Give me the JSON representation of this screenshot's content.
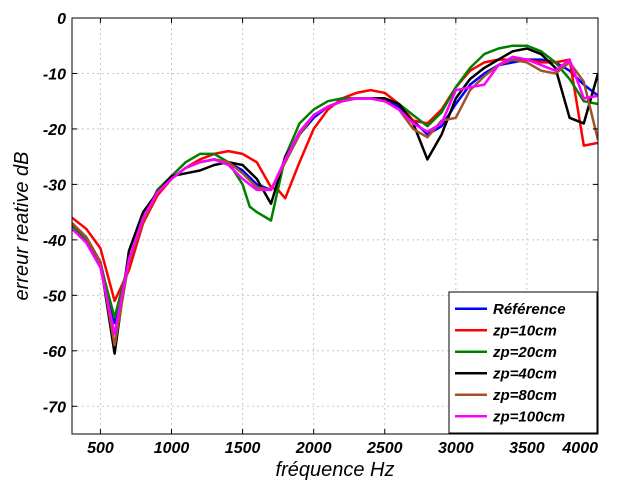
{
  "chart_data": {
    "type": "line",
    "title": "",
    "xlabel": "fréquence Hz",
    "ylabel": "erreur reative dB",
    "xlim": [
      300,
      4000
    ],
    "ylim": [
      -75,
      0
    ],
    "grid": true,
    "legend_position": "bottom-right",
    "x_ticks": [
      500,
      1000,
      1500,
      2000,
      2500,
      3000,
      3500,
      4000
    ],
    "x_tick_labels": [
      "500",
      "1000",
      "1500",
      "2000",
      "2500",
      "3000",
      "3500",
      "4000"
    ],
    "y_ticks": [
      0,
      -10,
      -20,
      -30,
      -40,
      -50,
      -60,
      -70
    ],
    "y_tick_labels": [
      "0",
      "-10",
      "-20",
      "-30",
      "-40",
      "-50",
      "-60",
      "-70"
    ],
    "series": [
      {
        "name": "Référence",
        "color": "#0000ff",
        "x": [
          300,
          400,
          500,
          600,
          700,
          800,
          900,
          1000,
          1100,
          1200,
          1300,
          1400,
          1500,
          1600,
          1700,
          1800,
          1900,
          2000,
          2100,
          2200,
          2300,
          2400,
          2500,
          2600,
          2700,
          2800,
          2900,
          3000,
          3100,
          3200,
          3300,
          3400,
          3500,
          3600,
          3700,
          3800,
          3900,
          4000
        ],
        "y": [
          -37,
          -39.5,
          -44,
          -55,
          -44,
          -36,
          -31.5,
          -29,
          -27,
          -26,
          -25.5,
          -26,
          -27.5,
          -30,
          -31,
          -26,
          -21,
          -18,
          -16,
          -15,
          -14.5,
          -14.5,
          -15,
          -16,
          -18.5,
          -21,
          -19.5,
          -15.5,
          -12,
          -10,
          -8.5,
          -8,
          -7.5,
          -7.5,
          -8,
          -9.5,
          -12,
          -14
        ]
      },
      {
        "name": "zp=10cm",
        "color": "#ff0000",
        "x": [
          300,
          400,
          500,
          600,
          700,
          800,
          900,
          1000,
          1100,
          1200,
          1300,
          1400,
          1500,
          1600,
          1700,
          1750,
          1800,
          1900,
          2000,
          2100,
          2200,
          2300,
          2400,
          2500,
          2600,
          2700,
          2800,
          2900,
          3000,
          3100,
          3200,
          3300,
          3400,
          3500,
          3600,
          3700,
          3800,
          3900,
          4000
        ],
        "y": [
          -36,
          -38,
          -41.5,
          -51,
          -45.5,
          -37,
          -32,
          -29,
          -27,
          -25.5,
          -24.5,
          -24,
          -24.5,
          -26,
          -30.5,
          -31,
          -32.5,
          -26,
          -20,
          -16.5,
          -14.5,
          -13.5,
          -13,
          -13.5,
          -15.5,
          -18.5,
          -19,
          -16.5,
          -12.5,
          -9.5,
          -8,
          -7.5,
          -7.5,
          -7.5,
          -8,
          -8,
          -7.5,
          -23,
          -22.5
        ]
      },
      {
        "name": "zp=20cm",
        "color": "#008000",
        "x": [
          300,
          400,
          500,
          600,
          700,
          800,
          900,
          1000,
          1100,
          1200,
          1300,
          1400,
          1500,
          1550,
          1600,
          1700,
          1800,
          1900,
          2000,
          2100,
          2200,
          2300,
          2400,
          2500,
          2600,
          2700,
          2800,
          2900,
          3000,
          3100,
          3200,
          3300,
          3400,
          3500,
          3600,
          3700,
          3800,
          3900,
          4000
        ],
        "y": [
          -37.5,
          -40,
          -44.5,
          -54,
          -44,
          -36.5,
          -31,
          -28.5,
          -26,
          -24.5,
          -24.5,
          -26,
          -30,
          -34,
          -35,
          -36.5,
          -25,
          -19,
          -16.5,
          -15,
          -14.5,
          -14.5,
          -14.5,
          -14.5,
          -15.5,
          -17.5,
          -19.5,
          -17,
          -12.5,
          -9,
          -6.5,
          -5.5,
          -5,
          -5,
          -6,
          -8,
          -11,
          -15,
          -15.5
        ]
      },
      {
        "name": "zp=40cm",
        "color": "#000000",
        "x": [
          300,
          400,
          500,
          600,
          700,
          800,
          900,
          1000,
          1100,
          1200,
          1300,
          1400,
          1500,
          1600,
          1700,
          1800,
          1900,
          2000,
          2100,
          2200,
          2300,
          2400,
          2500,
          2600,
          2700,
          2800,
          2900,
          3000,
          3100,
          3200,
          3300,
          3400,
          3500,
          3600,
          3700,
          3800,
          3900,
          4000
        ],
        "y": [
          -37,
          -39.5,
          -44,
          -60.5,
          -42,
          -35,
          -31.5,
          -28.5,
          -28,
          -27.5,
          -26.5,
          -26,
          -26.5,
          -29,
          -33.5,
          -25,
          -21,
          -17.5,
          -16,
          -15,
          -14.5,
          -14.5,
          -14.5,
          -15.5,
          -19,
          -25.5,
          -21,
          -14.5,
          -11,
          -9,
          -7.5,
          -6,
          -5.5,
          -6.5,
          -9,
          -18,
          -19,
          -10
        ]
      },
      {
        "name": "zp=80cm",
        "color": "#a0522d",
        "x": [
          300,
          400,
          500,
          600,
          700,
          800,
          900,
          1000,
          1100,
          1200,
          1300,
          1400,
          1500,
          1600,
          1700,
          1800,
          1900,
          2000,
          2100,
          2200,
          2300,
          2400,
          2500,
          2600,
          2700,
          2800,
          2900,
          3000,
          3100,
          3200,
          3300,
          3400,
          3500,
          3600,
          3700,
          3800,
          3900,
          4000
        ],
        "y": [
          -37,
          -39.5,
          -44,
          -59,
          -44,
          -36.5,
          -31.5,
          -29,
          -27,
          -26,
          -25.5,
          -26,
          -28,
          -30.5,
          -31,
          -26,
          -21,
          -17.5,
          -16,
          -15,
          -14.5,
          -14.5,
          -15,
          -16.5,
          -20,
          -21.5,
          -18.5,
          -18,
          -13,
          -10.5,
          -8.5,
          -7.5,
          -8,
          -9.5,
          -10,
          -8,
          -11.5,
          -22
        ]
      },
      {
        "name": "zp=100cm",
        "color": "#ff00ff",
        "x": [
          300,
          400,
          500,
          600,
          700,
          800,
          900,
          1000,
          1100,
          1200,
          1300,
          1400,
          1500,
          1600,
          1700,
          1800,
          1900,
          2000,
          2100,
          2200,
          2300,
          2400,
          2500,
          2600,
          2700,
          2800,
          2900,
          3000,
          3100,
          3200,
          3300,
          3400,
          3500,
          3600,
          3700,
          3800,
          3900,
          4000
        ],
        "y": [
          -38,
          -40.5,
          -45,
          -57,
          -43.5,
          -36,
          -31.5,
          -29,
          -27,
          -26,
          -25.5,
          -26.5,
          -29,
          -31,
          -31,
          -25.5,
          -20.5,
          -17.5,
          -16,
          -15,
          -14.5,
          -14.5,
          -15,
          -16.5,
          -19,
          -20.5,
          -19,
          -13,
          -12.5,
          -12,
          -8.5,
          -7,
          -7.5,
          -8.5,
          -9.5,
          -7.5,
          -14.5,
          -14
        ]
      }
    ]
  }
}
